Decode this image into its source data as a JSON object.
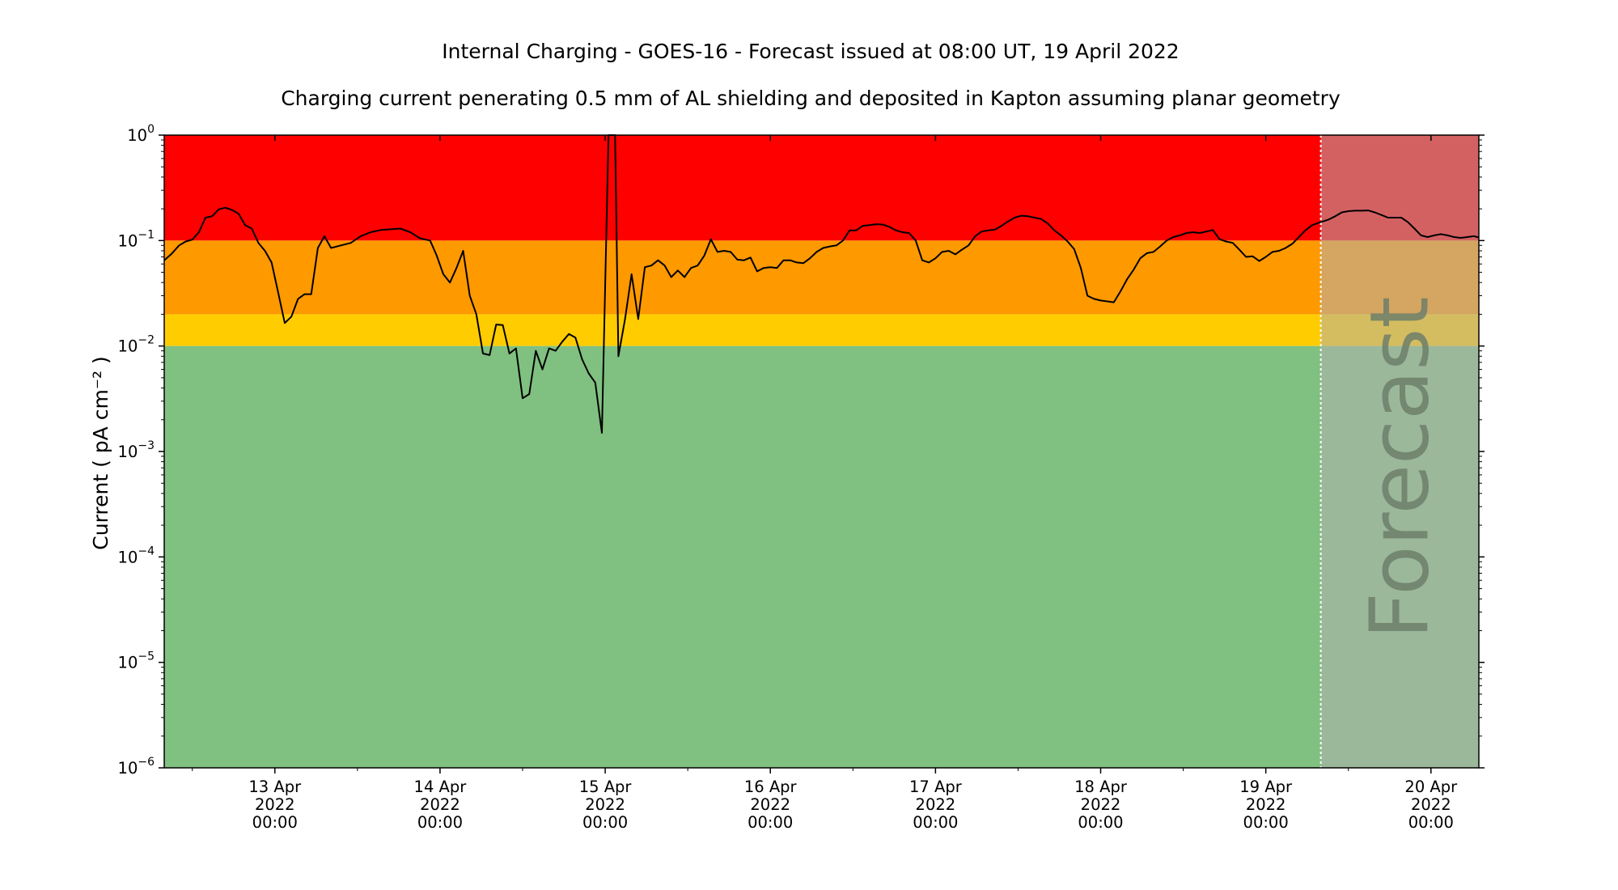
{
  "chart_data": {
    "type": "line",
    "title": "Internal Charging - GOES-16 - Forecast issued at 08:00 UT, 19 April 2022",
    "subtitle": "Charging current penerating 0.5 mm of AL shielding and deposited in Kapton assuming planar geometry",
    "ylabel": "Current ( pA cm⁻² )",
    "xlabel": "",
    "yscale": "log",
    "ylim_exponent": [
      -6,
      0
    ],
    "y_tick_labels": [
      {
        "exp": 0,
        "base": "10",
        "sup": "0"
      },
      {
        "exp": -1,
        "base": "10",
        "sup": "−1"
      },
      {
        "exp": -2,
        "base": "10",
        "sup": "−2"
      },
      {
        "exp": -3,
        "base": "10",
        "sup": "−3"
      },
      {
        "exp": -4,
        "base": "10",
        "sup": "−4"
      },
      {
        "exp": -5,
        "base": "10",
        "sup": "−5"
      },
      {
        "exp": -6,
        "base": "10",
        "sup": "−6"
      }
    ],
    "x_range_days": [
      12.33,
      20.29
    ],
    "x_ticks": [
      {
        "day": 13,
        "line1": "13 Apr",
        "line2": "2022",
        "line3": "00:00"
      },
      {
        "day": 14,
        "line1": "14 Apr",
        "line2": "2022",
        "line3": "00:00"
      },
      {
        "day": 15,
        "line1": "15 Apr",
        "line2": "2022",
        "line3": "00:00"
      },
      {
        "day": 16,
        "line1": "16 Apr",
        "line2": "2022",
        "line3": "00:00"
      },
      {
        "day": 17,
        "line1": "17 Apr",
        "line2": "2022",
        "line3": "00:00"
      },
      {
        "day": 18,
        "line1": "18 Apr",
        "line2": "2022",
        "line3": "00:00"
      },
      {
        "day": 19,
        "line1": "19 Apr",
        "line2": "2022",
        "line3": "00:00"
      },
      {
        "day": 20,
        "line1": "20 Apr",
        "line2": "2022",
        "line3": "00:00"
      }
    ],
    "bands": [
      {
        "name": "red",
        "from": 0.1,
        "to": 1.0,
        "color": "#ff0000"
      },
      {
        "name": "orange",
        "from": 0.02,
        "to": 0.1,
        "color": "#ff9900"
      },
      {
        "name": "yellow",
        "from": 0.01,
        "to": 0.02,
        "color": "#ffcc00"
      },
      {
        "name": "green",
        "from": 1e-06,
        "to": 0.01,
        "color": "#80c080"
      }
    ],
    "forecast": {
      "start_day": 19.333,
      "label": "Forecast",
      "overlay_color": "#b0b0b0",
      "overlay_opacity": 0.55
    },
    "series": [
      {
        "color": "#000000",
        "points": [
          [
            12.33,
            0.065
          ],
          [
            12.375,
            0.075
          ],
          [
            12.42,
            0.09
          ],
          [
            12.46,
            0.098
          ],
          [
            12.5,
            0.102
          ],
          [
            12.54,
            0.12
          ],
          [
            12.58,
            0.165
          ],
          [
            12.62,
            0.17
          ],
          [
            12.66,
            0.198
          ],
          [
            12.7,
            0.205
          ],
          [
            12.74,
            0.195
          ],
          [
            12.78,
            0.18
          ],
          [
            12.82,
            0.14
          ],
          [
            12.86,
            0.13
          ],
          [
            12.9,
            0.095
          ],
          [
            12.94,
            0.08
          ],
          [
            12.98,
            0.062
          ],
          [
            13.02,
            0.032
          ],
          [
            13.06,
            0.0165
          ],
          [
            13.1,
            0.019
          ],
          [
            13.14,
            0.028
          ],
          [
            13.18,
            0.031
          ],
          [
            13.22,
            0.031
          ],
          [
            13.26,
            0.085
          ],
          [
            13.3,
            0.11
          ],
          [
            13.34,
            0.085
          ],
          [
            13.4,
            0.09
          ],
          [
            13.46,
            0.095
          ],
          [
            13.52,
            0.11
          ],
          [
            13.58,
            0.12
          ],
          [
            13.64,
            0.126
          ],
          [
            13.7,
            0.128
          ],
          [
            13.76,
            0.13
          ],
          [
            13.82,
            0.12
          ],
          [
            13.88,
            0.105
          ],
          [
            13.94,
            0.1
          ],
          [
            13.98,
            0.072
          ],
          [
            14.02,
            0.048
          ],
          [
            14.06,
            0.04
          ],
          [
            14.1,
            0.055
          ],
          [
            14.14,
            0.08
          ],
          [
            14.18,
            0.03
          ],
          [
            14.22,
            0.02
          ],
          [
            14.26,
            0.0085
          ],
          [
            14.3,
            0.0082
          ],
          [
            14.34,
            0.016
          ],
          [
            14.38,
            0.0158
          ],
          [
            14.42,
            0.0085
          ],
          [
            14.46,
            0.0095
          ],
          [
            14.5,
            0.0032
          ],
          [
            14.54,
            0.0035
          ],
          [
            14.58,
            0.009
          ],
          [
            14.62,
            0.006
          ],
          [
            14.66,
            0.0095
          ],
          [
            14.7,
            0.009
          ],
          [
            14.74,
            0.011
          ],
          [
            14.78,
            0.013
          ],
          [
            14.82,
            0.012
          ],
          [
            14.86,
            0.0075
          ],
          [
            14.9,
            0.0055
          ],
          [
            14.94,
            0.0045
          ],
          [
            14.98,
            0.0015
          ],
          [
            15.02,
            1.0
          ],
          [
            15.06,
            1.0
          ],
          [
            15.08,
            0.008
          ],
          [
            15.12,
            0.018
          ],
          [
            15.16,
            0.048
          ],
          [
            15.2,
            0.018
          ],
          [
            15.24,
            0.056
          ],
          [
            15.28,
            0.058
          ],
          [
            15.32,
            0.065
          ],
          [
            15.36,
            0.058
          ],
          [
            15.4,
            0.045
          ],
          [
            15.44,
            0.052
          ],
          [
            15.48,
            0.045
          ],
          [
            15.52,
            0.055
          ],
          [
            15.56,
            0.058
          ],
          [
            15.6,
            0.072
          ],
          [
            15.64,
            0.103
          ],
          [
            15.68,
            0.078
          ],
          [
            15.72,
            0.08
          ],
          [
            15.76,
            0.078
          ],
          [
            15.8,
            0.066
          ],
          [
            15.84,
            0.065
          ],
          [
            15.88,
            0.069
          ],
          [
            15.92,
            0.051
          ],
          [
            15.96,
            0.055
          ],
          [
            16.0,
            0.056
          ],
          [
            16.04,
            0.055
          ],
          [
            16.08,
            0.065
          ],
          [
            16.12,
            0.065
          ],
          [
            16.16,
            0.062
          ],
          [
            16.2,
            0.061
          ],
          [
            16.24,
            0.068
          ],
          [
            16.28,
            0.078
          ],
          [
            16.32,
            0.085
          ],
          [
            16.36,
            0.088
          ],
          [
            16.4,
            0.09
          ],
          [
            16.44,
            0.1
          ],
          [
            16.48,
            0.125
          ],
          [
            16.52,
            0.125
          ],
          [
            16.56,
            0.138
          ],
          [
            16.6,
            0.14
          ],
          [
            16.64,
            0.143
          ],
          [
            16.68,
            0.142
          ],
          [
            16.72,
            0.135
          ],
          [
            16.76,
            0.125
          ],
          [
            16.8,
            0.12
          ],
          [
            16.84,
            0.118
          ],
          [
            16.88,
            0.1
          ],
          [
            16.92,
            0.065
          ],
          [
            16.96,
            0.062
          ],
          [
            17.0,
            0.068
          ],
          [
            17.04,
            0.078
          ],
          [
            17.08,
            0.08
          ],
          [
            17.12,
            0.074
          ],
          [
            17.16,
            0.082
          ],
          [
            17.2,
            0.09
          ],
          [
            17.24,
            0.11
          ],
          [
            17.28,
            0.122
          ],
          [
            17.32,
            0.125
          ],
          [
            17.36,
            0.127
          ],
          [
            17.4,
            0.138
          ],
          [
            17.44,
            0.152
          ],
          [
            17.48,
            0.165
          ],
          [
            17.52,
            0.172
          ],
          [
            17.56,
            0.17
          ],
          [
            17.6,
            0.165
          ],
          [
            17.64,
            0.16
          ],
          [
            17.68,
            0.145
          ],
          [
            17.72,
            0.125
          ],
          [
            17.76,
            0.112
          ],
          [
            17.8,
            0.098
          ],
          [
            17.84,
            0.083
          ],
          [
            17.88,
            0.055
          ],
          [
            17.92,
            0.03
          ],
          [
            17.96,
            0.028
          ],
          [
            18.0,
            0.027
          ],
          [
            18.04,
            0.0265
          ],
          [
            18.08,
            0.026
          ],
          [
            18.12,
            0.033
          ],
          [
            18.16,
            0.043
          ],
          [
            18.2,
            0.053
          ],
          [
            18.24,
            0.068
          ],
          [
            18.28,
            0.076
          ],
          [
            18.32,
            0.078
          ],
          [
            18.36,
            0.088
          ],
          [
            18.4,
            0.1
          ],
          [
            18.44,
            0.108
          ],
          [
            18.48,
            0.112
          ],
          [
            18.52,
            0.118
          ],
          [
            18.56,
            0.12
          ],
          [
            18.6,
            0.118
          ],
          [
            18.64,
            0.122
          ],
          [
            18.68,
            0.126
          ],
          [
            18.72,
            0.103
          ],
          [
            18.76,
            0.098
          ],
          [
            18.8,
            0.095
          ],
          [
            18.84,
            0.082
          ],
          [
            18.88,
            0.07
          ],
          [
            18.92,
            0.071
          ],
          [
            18.96,
            0.064
          ],
          [
            19.0,
            0.07
          ],
          [
            19.04,
            0.078
          ],
          [
            19.08,
            0.08
          ],
          [
            19.12,
            0.085
          ],
          [
            19.16,
            0.093
          ],
          [
            19.2,
            0.108
          ],
          [
            19.24,
            0.125
          ],
          [
            19.28,
            0.14
          ],
          [
            19.333,
            0.15
          ],
          [
            19.38,
            0.158
          ],
          [
            19.42,
            0.17
          ],
          [
            19.46,
            0.185
          ],
          [
            19.5,
            0.19
          ],
          [
            19.54,
            0.192
          ],
          [
            19.58,
            0.192
          ],
          [
            19.62,
            0.193
          ],
          [
            19.66,
            0.185
          ],
          [
            19.7,
            0.175
          ],
          [
            19.74,
            0.165
          ],
          [
            19.78,
            0.165
          ],
          [
            19.82,
            0.165
          ],
          [
            19.86,
            0.15
          ],
          [
            19.9,
            0.13
          ],
          [
            19.94,
            0.112
          ],
          [
            19.98,
            0.108
          ],
          [
            20.02,
            0.112
          ],
          [
            20.06,
            0.115
          ],
          [
            20.1,
            0.112
          ],
          [
            20.14,
            0.108
          ],
          [
            20.18,
            0.106
          ],
          [
            20.22,
            0.108
          ],
          [
            20.26,
            0.11
          ],
          [
            20.29,
            0.107
          ]
        ]
      }
    ]
  }
}
